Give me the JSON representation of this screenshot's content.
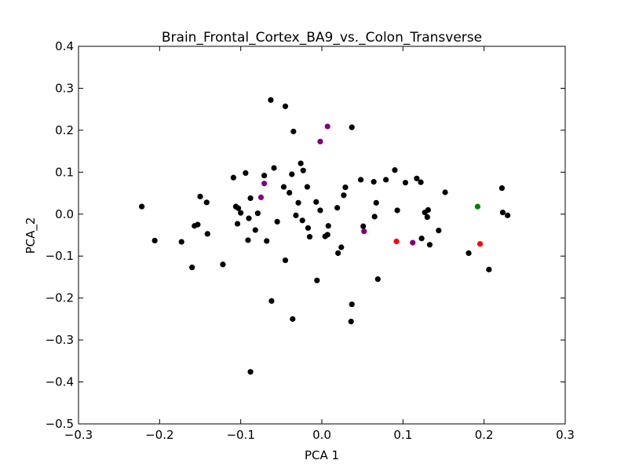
{
  "chart_data": {
    "type": "scatter",
    "title": "Brain_Frontal_Cortex_BA9_vs._Colon_Transverse",
    "xlabel": "PCA 1",
    "ylabel": "PCA_2",
    "xlim": [
      -0.3,
      0.3
    ],
    "ylim": [
      -0.5,
      0.4
    ],
    "xticks": [
      -0.3,
      -0.2,
      -0.1,
      0.0,
      0.1,
      0.2,
      0.3
    ],
    "yticks": [
      0.4,
      0.3,
      0.2,
      0.1,
      0.0,
      -0.1,
      -0.2,
      -0.3,
      -0.4,
      -0.5
    ],
    "xtick_labels": [
      "−0.3",
      "−0.2",
      "−0.1",
      "0.0",
      "0.1",
      "0.2",
      "0.3"
    ],
    "ytick_labels": [
      "0.4",
      "0.3",
      "0.2",
      "0.1",
      "0.0",
      "−0.1",
      "−0.2",
      "−0.3",
      "−0.4",
      "−0.5"
    ],
    "grid": false,
    "series": [
      {
        "color": "#000000",
        "points": [
          [
            -0.222,
            0.018
          ],
          [
            -0.206,
            -0.063
          ],
          [
            -0.173,
            -0.066
          ],
          [
            -0.16,
            -0.127
          ],
          [
            -0.157,
            -0.028
          ],
          [
            -0.153,
            -0.025
          ],
          [
            -0.15,
            0.042
          ],
          [
            -0.142,
            0.028
          ],
          [
            -0.141,
            -0.047
          ],
          [
            -0.122,
            -0.12
          ],
          [
            -0.109,
            0.087
          ],
          [
            -0.106,
            0.018
          ],
          [
            -0.104,
            -0.023
          ],
          [
            -0.103,
            0.014
          ],
          [
            -0.1,
            0.003
          ],
          [
            -0.094,
            0.098
          ],
          [
            -0.091,
            -0.062
          ],
          [
            -0.09,
            -0.01
          ],
          [
            -0.088,
            0.038
          ],
          [
            -0.088,
            -0.376
          ],
          [
            -0.082,
            -0.038
          ],
          [
            -0.079,
            0.002
          ],
          [
            -0.071,
            0.092
          ],
          [
            -0.068,
            -0.064
          ],
          [
            -0.063,
            0.272
          ],
          [
            -0.062,
            -0.207
          ],
          [
            -0.059,
            0.11
          ],
          [
            -0.055,
            -0.018
          ],
          [
            -0.047,
            0.065
          ],
          [
            -0.045,
            0.257
          ],
          [
            -0.045,
            -0.11
          ],
          [
            -0.04,
            0.051
          ],
          [
            -0.037,
            0.095
          ],
          [
            -0.036,
            -0.25
          ],
          [
            -0.035,
            0.197
          ],
          [
            -0.032,
            -0.003
          ],
          [
            -0.029,
            0.027
          ],
          [
            -0.026,
            0.121
          ],
          [
            -0.024,
            -0.015
          ],
          [
            -0.023,
            0.104
          ],
          [
            -0.018,
            0.065
          ],
          [
            -0.017,
            -0.033
          ],
          [
            -0.015,
            -0.054
          ],
          [
            -0.007,
            0.029
          ],
          [
            -0.006,
            -0.158
          ],
          [
            -0.002,
            0.009
          ],
          [
            0.004,
            -0.053
          ],
          [
            0.007,
            -0.049
          ],
          [
            0.008,
            -0.028
          ],
          [
            0.019,
            0.015
          ],
          [
            0.02,
            -0.093
          ],
          [
            0.024,
            -0.079
          ],
          [
            0.027,
            0.045
          ],
          [
            0.029,
            0.064
          ],
          [
            0.037,
            0.207
          ],
          [
            0.037,
            -0.215
          ],
          [
            0.036,
            -0.256
          ],
          [
            0.048,
            0.082
          ],
          [
            0.051,
            -0.029
          ],
          [
            0.064,
            0.077
          ],
          [
            0.065,
            -0.006
          ],
          [
            0.067,
            0.027
          ],
          [
            0.069,
            -0.155
          ],
          [
            0.079,
            0.082
          ],
          [
            0.09,
            0.105
          ],
          [
            0.093,
            0.009
          ],
          [
            0.103,
            0.075
          ],
          [
            0.117,
            0.085
          ],
          [
            0.122,
            0.076
          ],
          [
            0.123,
            -0.058
          ],
          [
            0.127,
            0.004
          ],
          [
            0.13,
            -0.007
          ],
          [
            0.131,
            0.01
          ],
          [
            0.133,
            -0.073
          ],
          [
            0.144,
            -0.039
          ],
          [
            0.152,
            0.052
          ],
          [
            0.181,
            -0.093
          ],
          [
            0.222,
            0.062
          ],
          [
            0.223,
            0.004
          ],
          [
            0.229,
            -0.003
          ],
          [
            0.206,
            -0.132
          ]
        ]
      },
      {
        "color": "#800080",
        "points": [
          [
            0.007,
            0.209
          ],
          [
            -0.002,
            0.173
          ],
          [
            -0.071,
            0.073
          ],
          [
            -0.075,
            0.04
          ],
          [
            0.052,
            -0.041
          ],
          [
            0.112,
            -0.068
          ]
        ]
      },
      {
        "color": "#ff0000",
        "points": [
          [
            0.092,
            -0.065
          ],
          [
            0.195,
            -0.071
          ]
        ]
      },
      {
        "color": "#008000",
        "points": [
          [
            0.192,
            0.018
          ]
        ]
      }
    ]
  }
}
